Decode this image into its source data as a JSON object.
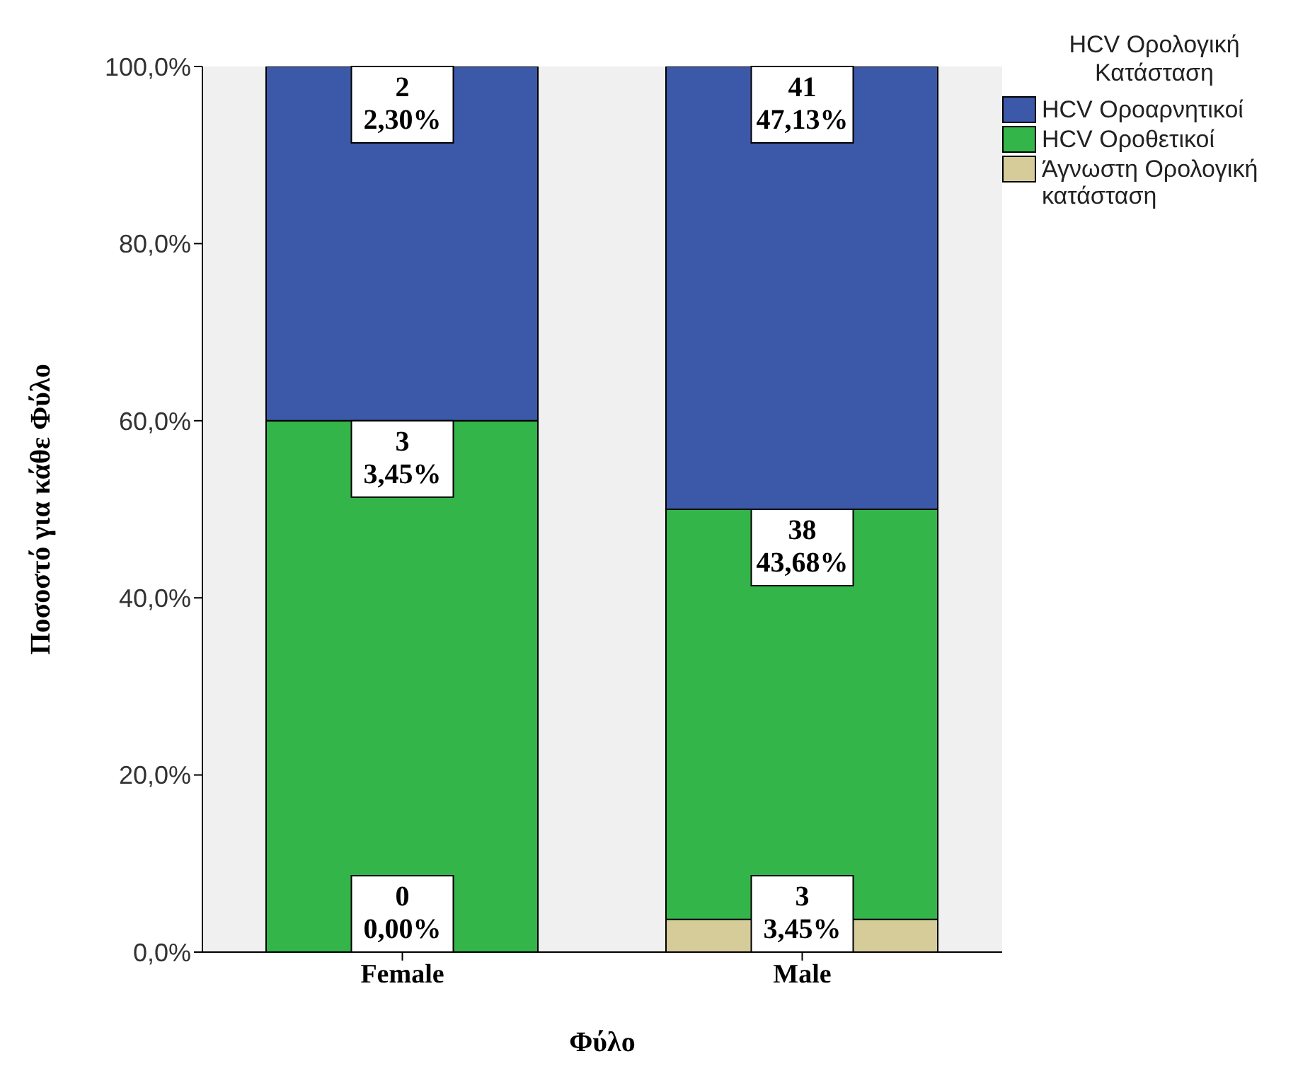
{
  "chart_data": {
    "type": "bar",
    "stacked": true,
    "xlabel": "Φύλο",
    "ylabel": "Ποσοστό για κάθε Φύλο",
    "legend_title": "HCV Ορολογική Κατάσταση",
    "legend": "right",
    "categories": [
      "Female",
      "Male"
    ],
    "ylim": [
      0,
      100
    ],
    "yticks": [
      {
        "value": 0,
        "label": "0,0%"
      },
      {
        "value": 20,
        "label": "20,0%"
      },
      {
        "value": 40,
        "label": "40,0%"
      },
      {
        "value": 60,
        "label": "60,0%"
      },
      {
        "value": 80,
        "label": "80,0%"
      },
      {
        "value": 100,
        "label": "100,0%"
      }
    ],
    "series": [
      {
        "name": "Άγνωστη Ορολογική κατάσταση",
        "color": "#d5cc9a",
        "values": [
          0,
          3.7
        ]
      },
      {
        "name": "HCV Οροθετικοί",
        "color": "#33b54a",
        "values": [
          60,
          46.3
        ]
      },
      {
        "name": "HCV Οροαρνητικοί",
        "color": "#3c58a8",
        "values": [
          40,
          50
        ]
      }
    ],
    "annotations": [
      {
        "text": "0\n0,00%",
        "x": "Female",
        "y": 0
      },
      {
        "text": "3\n3,45%",
        "x": "Female",
        "y": 60
      },
      {
        "text": "2\n2,30%",
        "x": "Female",
        "y": 100
      },
      {
        "text": "3\n3,45%",
        "x": "Male",
        "y": 3.7
      },
      {
        "text": "38\n43,68%",
        "x": "Male",
        "y": 50
      },
      {
        "text": "41\n47,13%",
        "x": "Male",
        "y": 100
      }
    ]
  }
}
